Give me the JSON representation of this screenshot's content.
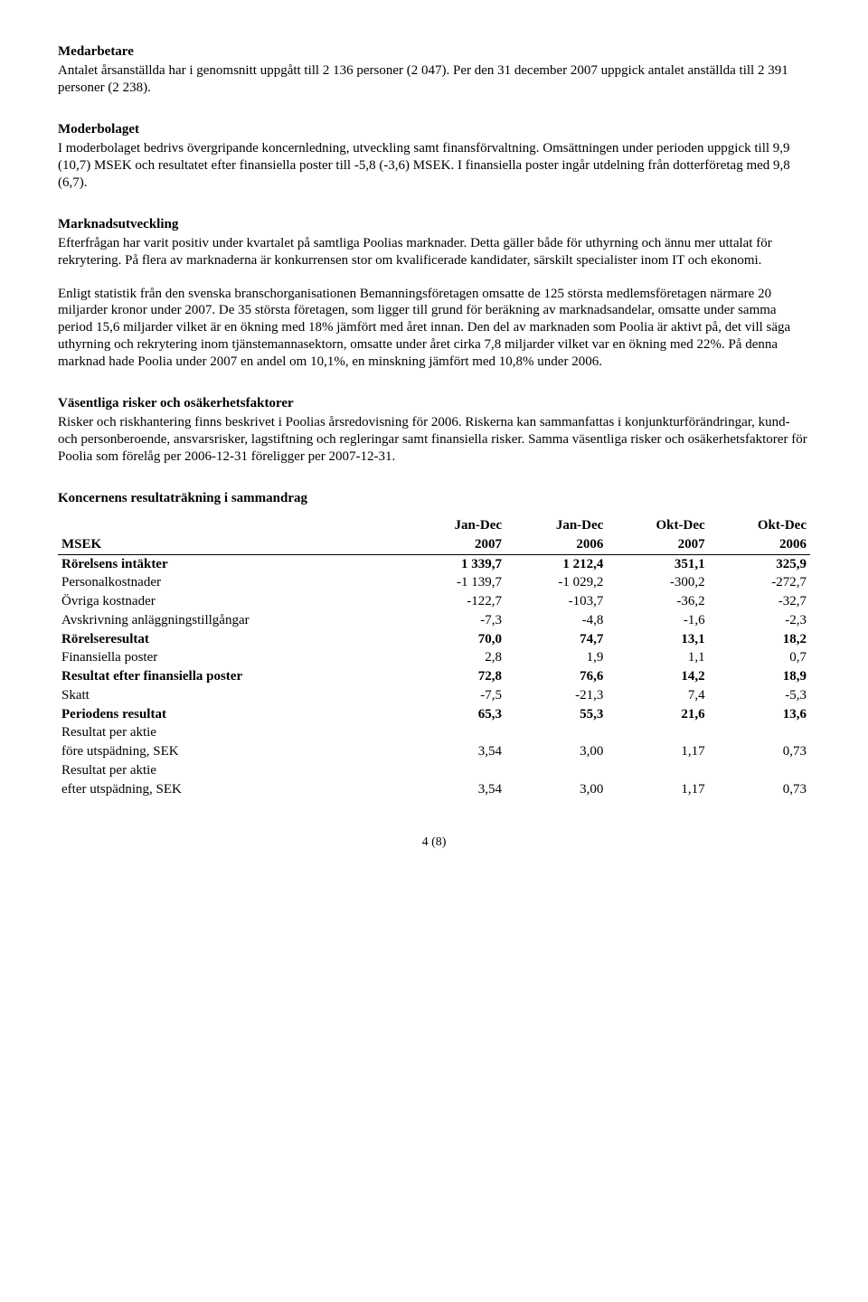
{
  "sections": {
    "medarbetare": {
      "heading": "Medarbetare",
      "body": "Antalet årsanställda har i genomsnitt uppgått till 2 136 personer (2 047). Per den 31 december 2007 uppgick antalet anställda till 2 391 personer (2 238)."
    },
    "moderbolaget": {
      "heading": "Moderbolaget",
      "body": "I moderbolaget bedrivs övergripande koncernledning, utveckling samt finansförvaltning. Omsättningen under perioden uppgick till 9,9 (10,7) MSEK och resultatet efter finansiella poster till -5,8 (-3,6) MSEK. I finansiella poster ingår utdelning från dotterföretag med 9,8 (6,7)."
    },
    "marknad": {
      "heading": "Marknadsutveckling",
      "p1": "Efterfrågan har varit positiv under kvartalet på samtliga Poolias marknader. Detta gäller både för uthyrning och ännu mer uttalat för rekrytering. På flera av marknaderna är konkurrensen stor om kvalificerade kandidater, särskilt specialister inom IT och ekonomi.",
      "p2": "Enligt statistik från den svenska branschorganisationen Bemanningsföretagen omsatte de 125 största medlemsföretagen närmare 20 miljarder kronor under 2007. De 35 största företagen, som ligger till grund för beräkning av marknadsandelar, omsatte under samma period 15,6 miljarder vilket är en ökning med 18% jämfört med året innan. Den del av marknaden som Poolia är aktivt på, det vill säga uthyrning och rekrytering inom tjänstemannasektorn, omsatte under året cirka 7,8 miljarder vilket var en ökning med 22%. På denna marknad hade Poolia under 2007 en andel om 10,1%, en minskning jämfört med 10,8% under 2006."
    },
    "risker": {
      "heading": "Väsentliga risker och osäkerhetsfaktorer",
      "body": "Risker och riskhantering finns beskrivet i Poolias årsredovisning för 2006. Riskerna kan sammanfattas i konjunkturförändringar, kund- och personberoende, ansvarsrisker, lagstiftning och regleringar samt finansiella risker. Samma väsentliga risker och osäkerhetsfaktorer för Poolia som förelåg per 2006-12-31 föreligger per 2007-12-31."
    }
  },
  "table": {
    "title": "Koncernens resultaträkning i sammandrag",
    "col_label_msek": "MSEK",
    "header_top": [
      "Jan-Dec",
      "Jan-Dec",
      "Okt-Dec",
      "Okt-Dec"
    ],
    "header_bottom": [
      "2007",
      "2006",
      "2007",
      "2006"
    ],
    "rows": [
      {
        "label": "Rörelsens intäkter",
        "vals": [
          "1 339,7",
          "1 212,4",
          "351,1",
          "325,9"
        ],
        "bold": true
      },
      {
        "label": "Personalkostnader",
        "vals": [
          "-1 139,7",
          "-1 029,2",
          "-300,2",
          "-272,7"
        ],
        "bold": false
      },
      {
        "label": "Övriga kostnader",
        "vals": [
          "-122,7",
          "-103,7",
          "-36,2",
          "-32,7"
        ],
        "bold": false
      },
      {
        "label": "Avskrivning anläggningstillgångar",
        "vals": [
          "-7,3",
          "-4,8",
          "-1,6",
          "-2,3"
        ],
        "bold": false
      },
      {
        "label": "Rörelseresultat",
        "vals": [
          "70,0",
          "74,7",
          "13,1",
          "18,2"
        ],
        "bold": true
      },
      {
        "label": "Finansiella poster",
        "vals": [
          "2,8",
          "1,9",
          "1,1",
          "0,7"
        ],
        "bold": false
      },
      {
        "label": "Resultat efter finansiella poster",
        "vals": [
          "72,8",
          "76,6",
          "14,2",
          "18,9"
        ],
        "bold": true
      },
      {
        "label": "Skatt",
        "vals": [
          "-7,5",
          "-21,3",
          "7,4",
          "-5,3"
        ],
        "bold": false
      },
      {
        "label": "Periodens resultat",
        "vals": [
          "65,3",
          "55,3",
          "21,6",
          "13,6"
        ],
        "bold": true
      }
    ],
    "eps": {
      "label": "Resultat per aktie",
      "rows": [
        {
          "label": "före utspädning, SEK",
          "vals": [
            "3,54",
            "3,00",
            "1,17",
            "0,73"
          ]
        },
        {
          "label": "efter utspädning, SEK",
          "vals": [
            "3,54",
            "3,00",
            "1,17",
            "0,73"
          ]
        }
      ]
    },
    "col_widths": [
      "46%",
      "13.5%",
      "13.5%",
      "13.5%",
      "13.5%"
    ]
  },
  "footer": "4 (8)"
}
